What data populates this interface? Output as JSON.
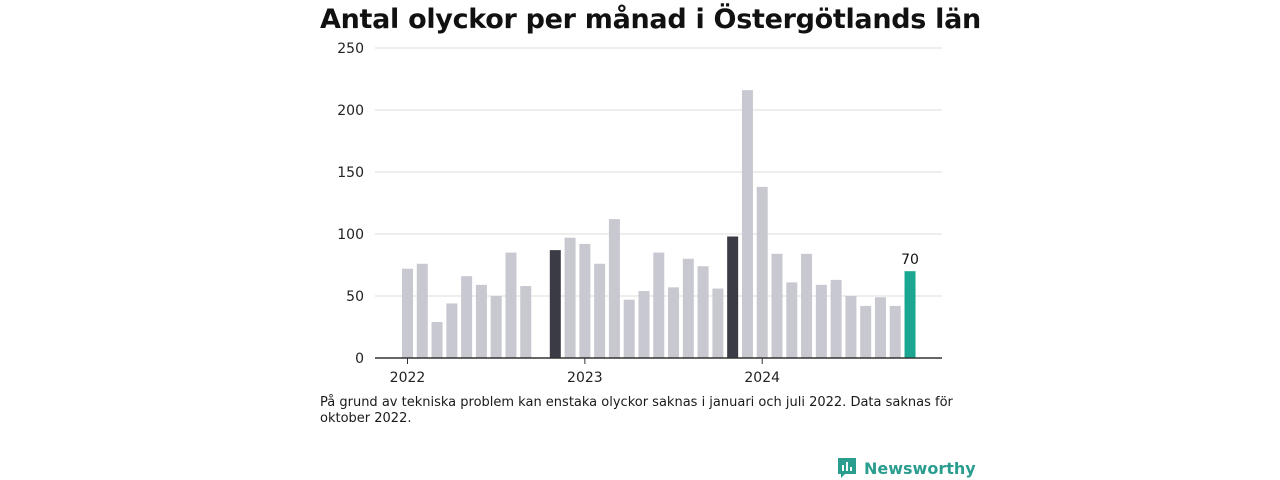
{
  "title": "Antal olyckor per månad i Östergötlands län",
  "footnote": "På grund av tekniska problem kan enstaka olyckor saknas i januari och juli 2022. Data saknas för oktober 2022.",
  "brand": {
    "name": "Newsworthy",
    "icon": "bar-chart-logo-icon"
  },
  "colors": {
    "default_bar": "#c8c8d0",
    "january_bar": "#3b3b45",
    "latest_bar": "#1aa690",
    "grid": "#dddddd",
    "axis": "#333333"
  },
  "chart_data": {
    "type": "bar",
    "title": "Antal olyckor per månad i Östergötlands län",
    "xlabel": "",
    "ylabel": "",
    "ylim": [
      0,
      250
    ],
    "yticks": [
      0,
      50,
      100,
      150,
      200,
      250
    ],
    "grid": true,
    "x_tick_labels": [
      {
        "label": "2022",
        "month": "2022-01"
      },
      {
        "label": "2023",
        "month": "2023-01"
      },
      {
        "label": "2024",
        "month": "2024-01"
      }
    ],
    "categories": [
      "2022-01",
      "2022-02",
      "2022-03",
      "2022-04",
      "2022-05",
      "2022-06",
      "2022-07",
      "2022-08",
      "2022-09",
      "2022-10",
      "2022-11",
      "2022-12",
      "2023-01",
      "2023-02",
      "2023-03",
      "2023-04",
      "2023-05",
      "2023-06",
      "2023-07",
      "2023-08",
      "2023-09",
      "2023-10",
      "2023-11",
      "2023-12",
      "2024-01",
      "2024-02",
      "2024-03",
      "2024-04",
      "2024-05",
      "2024-06",
      "2024-07",
      "2024-08",
      "2024-09",
      "2024-10",
      "2024-11"
    ],
    "values": [
      72,
      76,
      29,
      44,
      66,
      59,
      50,
      85,
      58,
      null,
      87,
      97,
      92,
      76,
      112,
      47,
      54,
      85,
      57,
      80,
      74,
      56,
      98,
      216,
      138,
      84,
      61,
      84,
      59,
      63,
      50,
      42,
      49,
      42,
      70
    ],
    "highlighted": {
      "dark": [
        "2022-11",
        "2023-11"
      ],
      "accent": [
        "2024-11"
      ]
    },
    "data_labels": [
      {
        "month": "2024-11",
        "text": "70"
      }
    ]
  }
}
